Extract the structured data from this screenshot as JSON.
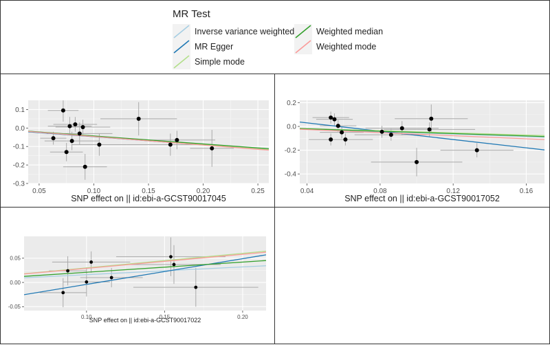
{
  "legend": {
    "title": "MR Test",
    "items": [
      {
        "label": "Inverse variance weighted",
        "color": "#a6cee3"
      },
      {
        "label": "MR Egger",
        "color": "#1f78b4"
      },
      {
        "label": "Simple mode",
        "color": "#b2df8a"
      },
      {
        "label": "Weighted median",
        "color": "#33a02c"
      },
      {
        "label": "Weighted mode",
        "color": "#fb9a99"
      }
    ]
  },
  "chart_data": [
    {
      "type": "scatter",
      "xlabel": "SNP effect on || id:ebi-a-GCST90017045",
      "xlim": [
        0.04,
        0.26
      ],
      "ylim": [
        -0.3,
        0.15
      ],
      "xticks": [
        "0.05",
        "0.10",
        "0.15",
        "0.20",
        "0.25"
      ],
      "xtick_values": [
        0.05,
        0.1,
        0.15,
        0.2,
        0.25
      ],
      "yticks": [
        "-0.3",
        "-0.2",
        "-0.1",
        "0.0",
        "0.1"
      ],
      "ytick_values": [
        -0.3,
        -0.2,
        -0.1,
        0.0,
        0.1
      ],
      "points": [
        {
          "x": 0.063,
          "y": -0.055,
          "xe": 0.012,
          "ye": 0.035
        },
        {
          "x": 0.072,
          "y": 0.095,
          "xe": 0.014,
          "ye": 0.06
        },
        {
          "x": 0.075,
          "y": -0.13,
          "xe": 0.015,
          "ye": 0.05
        },
        {
          "x": 0.078,
          "y": 0.01,
          "xe": 0.02,
          "ye": 0.05
        },
        {
          "x": 0.08,
          "y": -0.07,
          "xe": 0.025,
          "ye": 0.05
        },
        {
          "x": 0.083,
          "y": 0.02,
          "xe": 0.02,
          "ye": 0.04
        },
        {
          "x": 0.087,
          "y": -0.03,
          "xe": 0.03,
          "ye": 0.06
        },
        {
          "x": 0.09,
          "y": 0.005,
          "xe": 0.025,
          "ye": 0.04
        },
        {
          "x": 0.092,
          "y": -0.21,
          "xe": 0.02,
          "ye": 0.07
        },
        {
          "x": 0.105,
          "y": -0.09,
          "xe": 0.025,
          "ye": 0.06
        },
        {
          "x": 0.141,
          "y": 0.05,
          "xe": 0.035,
          "ye": 0.09
        },
        {
          "x": 0.17,
          "y": -0.09,
          "xe": 0.04,
          "ye": 0.06
        },
        {
          "x": 0.176,
          "y": -0.065,
          "xe": 0.035,
          "ye": 0.05
        },
        {
          "x": 0.208,
          "y": -0.11,
          "xe": 0.02,
          "ye": 0.1
        }
      ],
      "lines": [
        {
          "method": "Inverse variance weighted",
          "intercept": 0,
          "slope": -0.44
        },
        {
          "method": "MR Egger",
          "intercept": -0.003,
          "slope": -0.44
        },
        {
          "method": "Simple mode",
          "intercept": 0,
          "slope": -0.45
        },
        {
          "method": "Weighted median",
          "intercept": 0,
          "slope": -0.43
        },
        {
          "method": "Weighted mode",
          "intercept": 0,
          "slope": -0.46
        }
      ]
    },
    {
      "type": "scatter",
      "xlabel": "SNP effect on || id:ebi-a-GCST90017052",
      "xlim": [
        0.036,
        0.17
      ],
      "ylim": [
        -0.48,
        0.22
      ],
      "xticks": [
        "0.04",
        "0.08",
        "0.12",
        "0.16"
      ],
      "xtick_values": [
        0.04,
        0.08,
        0.12,
        0.16
      ],
      "yticks": [
        "-0.4",
        "-0.2",
        "0.0",
        "0.2"
      ],
      "ytick_values": [
        -0.4,
        -0.2,
        0.0,
        0.2
      ],
      "points": [
        {
          "x": 0.053,
          "y": 0.075,
          "xe": 0.01,
          "ye": 0.05
        },
        {
          "x": 0.053,
          "y": -0.11,
          "xe": 0.012,
          "ye": 0.05
        },
        {
          "x": 0.055,
          "y": 0.06,
          "xe": 0.01,
          "ye": 0.05
        },
        {
          "x": 0.057,
          "y": 0.005,
          "xe": 0.01,
          "ye": 0.05
        },
        {
          "x": 0.059,
          "y": -0.05,
          "xe": 0.012,
          "ye": 0.05
        },
        {
          "x": 0.061,
          "y": -0.11,
          "xe": 0.015,
          "ye": 0.05
        },
        {
          "x": 0.081,
          "y": -0.045,
          "xe": 0.015,
          "ye": 0.05
        },
        {
          "x": 0.086,
          "y": -0.07,
          "xe": 0.02,
          "ye": 0.05
        },
        {
          "x": 0.092,
          "y": -0.015,
          "xe": 0.02,
          "ye": 0.06
        },
        {
          "x": 0.1,
          "y": -0.3,
          "xe": 0.025,
          "ye": 0.12
        },
        {
          "x": 0.107,
          "y": -0.025,
          "xe": 0.025,
          "ye": 0.06
        },
        {
          "x": 0.108,
          "y": 0.065,
          "xe": 0.02,
          "ye": 0.12
        },
        {
          "x": 0.133,
          "y": -0.2,
          "xe": 0.02,
          "ye": 0.06
        }
      ],
      "lines": [
        {
          "method": "Inverse variance weighted",
          "intercept": 0,
          "slope": -0.53
        },
        {
          "method": "MR Egger",
          "intercept": 0.1,
          "slope": -1.75
        },
        {
          "method": "Simple mode",
          "intercept": 0,
          "slope": -0.45
        },
        {
          "method": "Weighted median",
          "intercept": 0,
          "slope": -0.5
        },
        {
          "method": "Weighted mode",
          "intercept": 0,
          "slope": -0.65
        }
      ]
    },
    {
      "type": "scatter",
      "xlabel": "SNP effect on || id:ebi-a-GCST90017022",
      "xlim": [
        0.06,
        0.215
      ],
      "ylim": [
        -0.058,
        0.095
      ],
      "xticks": [
        "0.10",
        "0.15",
        "0.20"
      ],
      "xtick_values": [
        0.1,
        0.15,
        0.2
      ],
      "yticks": [
        "-0.05",
        "0.00",
        "0.05"
      ],
      "ytick_values": [
        -0.05,
        0.0,
        0.05
      ],
      "points": [
        {
          "x": 0.085,
          "y": -0.021,
          "xe": 0.015,
          "ye": 0.03
        },
        {
          "x": 0.088,
          "y": 0.024,
          "xe": 0.012,
          "ye": 0.03
        },
        {
          "x": 0.1,
          "y": 0.001,
          "xe": 0.015,
          "ye": 0.03
        },
        {
          "x": 0.103,
          "y": 0.042,
          "xe": 0.025,
          "ye": 0.022
        },
        {
          "x": 0.116,
          "y": 0.01,
          "xe": 0.02,
          "ye": 0.02
        },
        {
          "x": 0.154,
          "y": 0.053,
          "xe": 0.035,
          "ye": 0.04
        },
        {
          "x": 0.156,
          "y": 0.037,
          "xe": 0.03,
          "ye": 0.04
        },
        {
          "x": 0.17,
          "y": -0.01,
          "xe": 0.04,
          "ye": 0.04
        }
      ],
      "lines": [
        {
          "method": "Inverse variance weighted",
          "intercept": 0,
          "slope": 0.16
        },
        {
          "method": "MR Egger",
          "intercept": -0.057,
          "slope": 0.53
        },
        {
          "method": "Simple mode",
          "intercept": 0,
          "slope": 0.3
        },
        {
          "method": "Weighted median",
          "intercept": 0,
          "slope": 0.21
        },
        {
          "method": "Weighted mode",
          "intercept": 0,
          "slope": 0.29
        }
      ]
    }
  ]
}
